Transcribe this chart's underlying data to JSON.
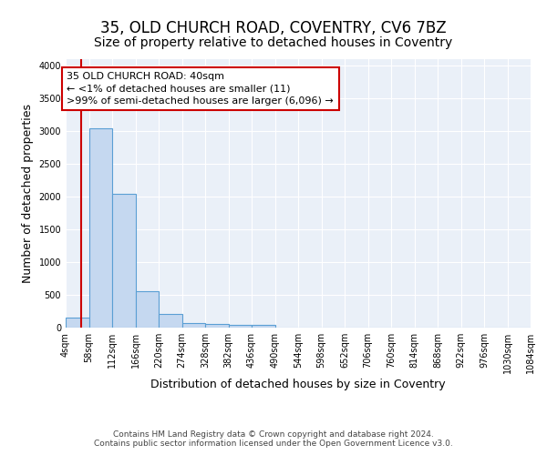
{
  "title": "35, OLD CHURCH ROAD, COVENTRY, CV6 7BZ",
  "subtitle": "Size of property relative to detached houses in Coventry",
  "xlabel": "Distribution of detached houses by size in Coventry",
  "ylabel": "Number of detached properties",
  "bin_edges": [
    4,
    58,
    112,
    166,
    220,
    274,
    328,
    382,
    436,
    490,
    544,
    598,
    652,
    706,
    760,
    814,
    868,
    922,
    976,
    1030,
    1084
  ],
  "bar_heights": [
    150,
    3050,
    2050,
    560,
    210,
    70,
    50,
    40,
    40,
    0,
    0,
    0,
    0,
    0,
    0,
    0,
    0,
    0,
    0,
    0
  ],
  "bar_color": "#c5d8f0",
  "bar_edgecolor": "#5a9fd4",
  "ylim": [
    0,
    4100
  ],
  "yticks": [
    0,
    500,
    1000,
    1500,
    2000,
    2500,
    3000,
    3500,
    4000
  ],
  "property_size": 40,
  "vline_color": "#cc0000",
  "annotation_line1": "35 OLD CHURCH ROAD: 40sqm",
  "annotation_line2": "← <1% of detached houses are smaller (11)",
  "annotation_line3": ">99% of semi-detached houses are larger (6,096) →",
  "annotation_box_color": "#cc0000",
  "bg_color": "#eaf0f8",
  "grid_color": "#ffffff",
  "footer_text": "Contains HM Land Registry data © Crown copyright and database right 2024.\nContains public sector information licensed under the Open Government Licence v3.0.",
  "title_fontsize": 12,
  "subtitle_fontsize": 10,
  "ylabel_fontsize": 9,
  "xlabel_fontsize": 9,
  "tick_fontsize": 7,
  "footer_fontsize": 6.5,
  "ann_fontsize": 8
}
